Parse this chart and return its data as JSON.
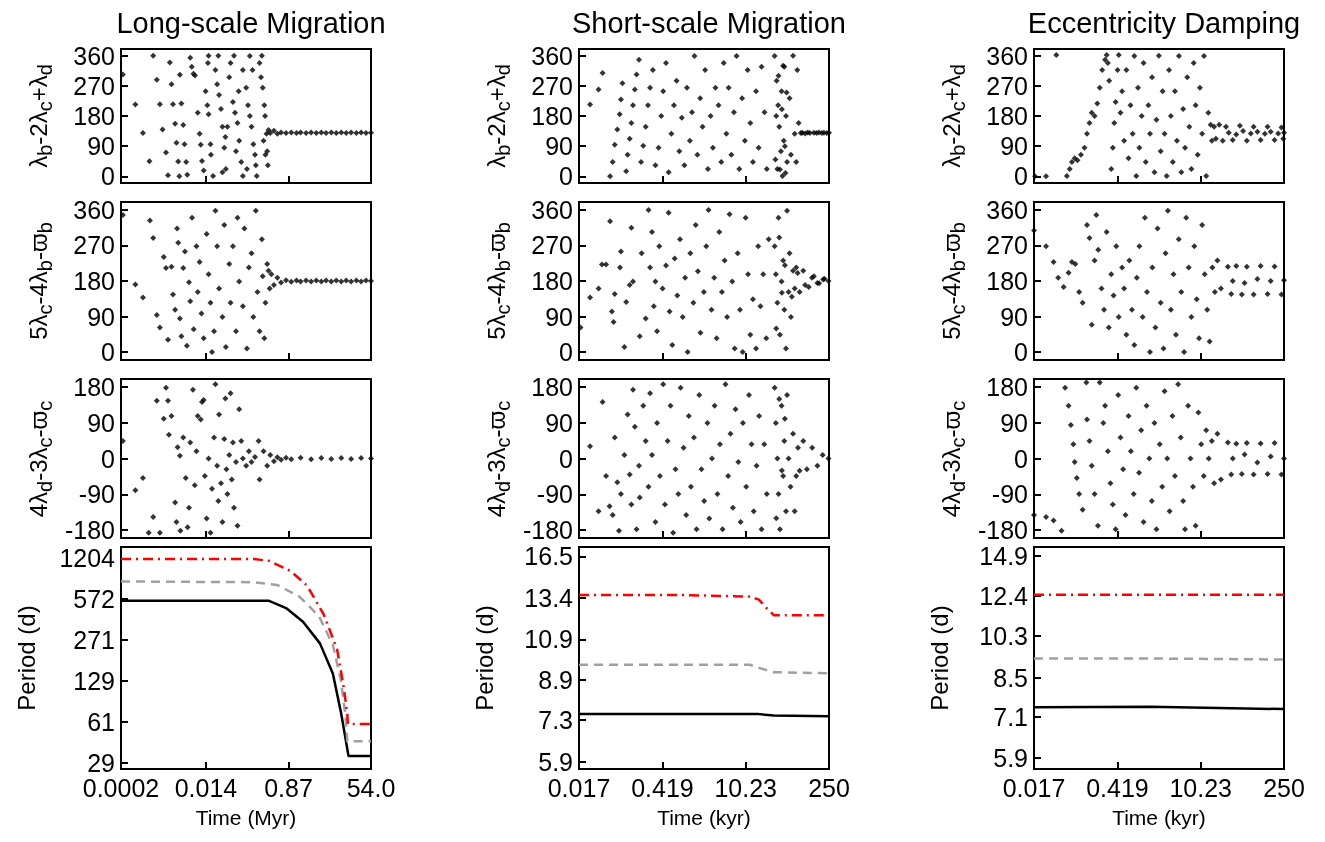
{
  "chart_data": [
    {
      "type": "scatter",
      "title": "Long-scale Migration",
      "ylabel": "λ$_{b}$-2λ$_{c}$+λ$_{d}$",
      "log": "x",
      "marker": "diamond",
      "tick_labels": "y",
      "xlim": [
        0.0002,
        54
      ],
      "xticks": [
        0.0002,
        0.014,
        0.87,
        54
      ],
      "ylim": [
        -20,
        380
      ],
      "yticks": [
        0,
        90,
        180,
        270,
        360
      ],
      "series": [
        {
          "color": "#000000",
          "x": [
            0.00022,
            0.00041,
            0.0006,
            0.00083,
            0.001,
            0.0012,
            0.0014,
            0.0016,
            0.0019,
            0.0021,
            0.0023,
            0.0025,
            0.0027,
            0.003,
            0.0032,
            0.0035,
            0.0037,
            0.0038,
            0.0041,
            0.0045,
            0.0048,
            0.0052,
            0.0055,
            0.0064,
            0.0069,
            0.0075,
            0.0081,
            0.0093,
            0.0102,
            0.0108,
            0.0115,
            0.0125,
            0.0138,
            0.015,
            0.016,
            0.0176,
            0.018,
            0.02,
            0.016,
            0.0155,
            0.0225,
            0.0245,
            0.027,
            0.0298,
            0.032,
            0.035,
            0.038,
            0.026,
            0.032,
            0.041,
            0.037,
            0.045,
            0.048,
            0.054,
            0.06,
            0.068,
            0.074,
            0.082,
            0.089,
            0.057,
            0.072,
            0.089,
            0.063,
            0.105,
            0.115,
            0.126,
            0.137,
            0.15,
            0.163,
            0.17,
            0.126,
            0.144,
            0.109,
            0.178,
            0.205,
            0.22,
            0.24,
            0.26,
            0.27,
            0.29,
            0.3,
            0.31,
            0.23,
            0.25,
            0.275,
            0.32,
            0.35,
            0.42,
            0.5,
            0.6,
            0.77,
            1,
            1.3,
            1.6,
            2.1,
            2.7,
            3.5,
            4.5,
            5.7,
            7.4,
            9.5,
            12.2,
            15.6,
            20,
            26,
            33,
            42,
            54
          ],
          "values": [
            304,
            214,
            129,
            45,
            360,
            288,
            215,
            140,
            71,
            3,
            340,
            275,
            215,
            157,
            100,
            44,
            0,
            303,
            217,
            153,
            96,
            43,
            5,
            354,
            327,
            306,
            301,
            190,
            127,
            94,
            46,
            17,
            254,
            212,
            185,
            96,
            64,
            1,
            360,
            338,
            317,
            275,
            243,
            201,
            148,
            85,
            22,
            360,
            12,
            148,
            117,
            296,
            338,
            222,
            190,
            159,
            106,
            43,
            1,
            360,
            254,
            317,
            75,
            264,
            212,
            180,
            148,
            96,
            64,
            33,
            359,
            317,
            22,
            1,
            338,
            296,
            264,
            212,
            180,
            127,
            75,
            33,
            360,
            106,
            64,
            138,
            129,
            136,
            127,
            131,
            129,
            131,
            129,
            131,
            129,
            131,
            129,
            131,
            129,
            131,
            129,
            131,
            129,
            131,
            129,
            131,
            129,
            130
          ]
        }
      ]
    },
    {
      "type": "scatter",
      "title": "Short-scale Migration",
      "ylabel": "λ$_{b}$-2λ$_{c}$+λ$_{d}$",
      "log": "x",
      "marker": "diamond",
      "tick_labels": "y",
      "xlim": [
        0.017,
        250
      ],
      "xticks": [
        0.017,
        0.419,
        10.23,
        250
      ],
      "ylim": [
        -20,
        380
      ],
      "yticks": [
        0,
        90,
        180,
        270,
        360
      ],
      "series": [
        {
          "color": "#000000",
          "x": [
            0.026,
            0.036,
            0.042,
            0.056,
            0.062,
            0.067,
            0.074,
            0.081,
            0.085,
            0.09,
            0.104,
            0.11,
            0.119,
            0.127,
            0.135,
            0.145,
            0.155,
            0.17,
            0.184,
            0.2,
            0.22,
            0.24,
            0.26,
            0.29,
            0.32,
            0.36,
            0.4,
            0.43,
            0.48,
            0.53,
            0.59,
            0.65,
            0.72,
            0.8,
            0.88,
            0.97,
            1.07,
            1.2,
            1.3,
            1.43,
            1.6,
            1.78,
            1.95,
            2.15,
            2.4,
            2.65,
            2.9,
            3.2,
            3.6,
            4,
            4.4,
            4.85,
            5.3,
            5.9,
            6.5,
            7.2,
            8,
            8.9,
            9.9,
            11,
            12.2,
            13.5,
            15.2,
            16.8,
            18.8,
            21,
            23,
            31,
            33.5,
            35.5,
            37,
            39.5,
            42,
            45,
            48,
            50,
            34.5,
            40.5,
            44,
            32,
            33,
            36,
            38,
            41,
            43,
            46,
            49,
            47,
            55,
            58,
            63,
            67,
            71,
            74,
            78,
            85,
            90,
            100,
            110,
            120,
            140,
            155,
            170,
            190,
            206,
            230,
            250
          ],
          "values": [
            214,
            259,
            308,
            0,
            43,
            94,
            140,
            185,
            229,
            278,
            15,
            64,
            112,
            159,
            212,
            259,
            304,
            348,
            43,
            91,
            148,
            212,
            264,
            317,
            33,
            85,
            180,
            254,
            338,
            12,
            127,
            212,
            285,
            75,
            175,
            33,
            264,
            106,
            191,
            359,
            64,
            233,
            148,
            317,
            22,
            180,
            85,
            264,
            212,
            43,
            338,
            127,
            264,
            64,
            191,
            359,
            22,
            233,
            106,
            317,
            159,
            43,
            254,
            85,
            327,
            191,
            22,
            359,
            285,
            212,
            148,
            75,
            1,
            327,
            180,
            43,
            22,
            254,
            106,
            50,
            180,
            300,
            20,
            200,
            330,
            90,
            250,
            10,
            233,
            64,
            360,
            127,
            43,
            317,
            159,
            129,
            130,
            128,
            131,
            129,
            130,
            129,
            131,
            129,
            130,
            129,
            130
          ]
        }
      ]
    },
    {
      "type": "scatter",
      "title": "Eccentricity Damping",
      "ylabel": "λ$_{b}$-2λ$_{c}$+λ$_{d}$",
      "log": "x",
      "marker": "diamond",
      "tick_labels": "y",
      "xlim": [
        0.017,
        250
      ],
      "xticks": [
        0.017,
        0.419,
        10.23,
        250
      ],
      "ylim": [
        -20,
        380
      ],
      "yticks": [
        0,
        90,
        180,
        270,
        360
      ],
      "series": [
        {
          "color": "#000000",
          "x": [
            0.0177,
            0.027,
            0.04,
            0.06,
            0.067,
            0.073,
            0.081,
            0.09,
            0.103,
            0.118,
            0.13,
            0.143,
            0.156,
            0.174,
            0.193,
            0.212,
            0.233,
            0.26,
            0.276,
            0.29,
            0.305,
            0.33,
            0.35,
            0.37,
            0.39,
            0.42,
            0.44,
            0.47,
            0.5,
            0.54,
            0.59,
            0.64,
            0.69,
            0.75,
            0.8,
            0.86,
            0.92,
            0.97,
            1.06,
            1.14,
            1.24,
            1.37,
            1.46,
            1.58,
            1.73,
            1.87,
            2.05,
            2.2,
            2.37,
            2.55,
            2.77,
            3.03,
            3.25,
            3.5,
            3.8,
            4.1,
            4.43,
            4.85,
            5.2,
            5.6,
            6.1,
            6.6,
            7.15,
            7.8,
            8.4,
            9.1,
            9.9,
            10.8,
            11.6,
            12.6,
            13.7,
            15,
            15.7,
            17.1,
            18.3,
            20.8,
            23.8,
            27,
            35,
            46,
            60,
            78,
            102,
            133,
            174,
            227,
            243,
            30,
            40,
            52,
            70,
            90,
            120,
            150,
            200,
            250
          ],
          "values": [
            0,
            0,
            362,
            1,
            22,
            43,
            54,
            48,
            64,
            85,
            127,
            159,
            190,
            180,
            217,
            264,
            317,
            348,
            362,
            338,
            285,
            22,
            85,
            159,
            222,
            317,
            362,
            190,
            254,
            106,
            317,
            54,
            212,
            127,
            359,
            1,
            264,
            85,
            180,
            338,
            43,
            212,
            127,
            296,
            12,
            169,
            360,
            75,
            254,
            127,
            1,
            317,
            180,
            43,
            254,
            106,
            359,
            12,
            201,
            85,
            296,
            148,
            22,
            338,
            212,
            64,
            264,
            127,
            359,
            1,
            190,
            154,
            106,
            148,
            112,
            154,
            106,
            148,
            108,
            151,
            106,
            148,
            108,
            148,
            108,
            146,
            112,
            130,
            125,
            135,
            128,
            133,
            127,
            133,
            128,
            130
          ]
        }
      ]
    },
    {
      "type": "scatter",
      "ylabel": "5λ$_{c}$-4λ$_{b}$-ϖ$_{b}$",
      "log": "x",
      "marker": "diamond",
      "tick_labels": "y",
      "xlim": [
        0.0002,
        54
      ],
      "xticks": [
        0.0002,
        0.014,
        0.87,
        54
      ],
      "ylim": [
        -20,
        380
      ],
      "yticks": [
        0,
        90,
        180,
        270,
        360
      ],
      "series": [
        {
          "color": "#000000",
          "x": [
            0.00022,
            0.00041,
            0.0006,
            0.00085,
            0.001,
            0.0012,
            0.0014,
            0.0017,
            0.0019,
            0.0021,
            0.0025,
            0.0027,
            0.003,
            0.0033,
            0.0035,
            0.0038,
            0.0041,
            0.0045,
            0.0049,
            0.0054,
            0.006,
            0.0064,
            0.007,
            0.0076,
            0.0087,
            0.0093,
            0.0102,
            0.0112,
            0.0125,
            0.0145,
            0.016,
            0.0176,
            0.019,
            0.021,
            0.0225,
            0.0245,
            0.027,
            0.032,
            0.035,
            0.038,
            0.045,
            0.048,
            0.054,
            0.063,
            0.068,
            0.074,
            0.089,
            0.096,
            0.109,
            0.12,
            0.137,
            0.15,
            0.17,
            0.185,
            0.205,
            0.23,
            0.24,
            0.26,
            0.275,
            0.3,
            0.32,
            0.34,
            0.37,
            0.42,
            0.5,
            0.6,
            0.77,
            1,
            1.3,
            1.6,
            2.1,
            2.7,
            3.5,
            4.5,
            5.7,
            7.4,
            9.5,
            12.2,
            15.6,
            20,
            26,
            33,
            42,
            54
          ],
          "values": [
            347,
            171,
            138,
            333,
            289,
            94,
            62,
            241,
            213,
            31,
            216,
            146,
            107,
            313,
            277,
            85,
            40,
            213,
            255,
            16,
            177,
            129,
            340,
            58,
            268,
            152,
            228,
            98,
            35,
            299,
            197,
            125,
            0,
            53,
            358,
            268,
            161,
            89,
            322,
            13,
            223,
            125,
            268,
            53,
            340,
            179,
            116,
            313,
            9,
            214,
            250,
            89,
            358,
            152,
            53,
            286,
            192,
            35,
            125,
            223,
            206,
            161,
            197,
            170,
            188,
            176,
            182,
            178,
            181,
            179,
            181,
            179,
            181,
            179,
            181,
            179,
            181,
            179,
            181,
            179,
            181,
            179,
            181,
            180
          ]
        }
      ]
    },
    {
      "type": "scatter",
      "ylabel": "5λ$_{c}$-4λ$_{b}$-ϖ$_{b}$",
      "log": "x",
      "marker": "diamond",
      "tick_labels": "y",
      "xlim": [
        0.017,
        250
      ],
      "xticks": [
        0.017,
        0.419,
        10.23,
        250
      ],
      "ylim": [
        -20,
        380
      ],
      "yticks": [
        0,
        90,
        180,
        270,
        360
      ],
      "series": [
        {
          "color": "#000000",
          "x": [
            0.018,
            0.026,
            0.036,
            0.041,
            0.048,
            0.056,
            0.06,
            0.064,
            0.067,
            0.082,
            0.085,
            0.097,
            0.104,
            0.119,
            0.127,
            0.135,
            0.175,
            0.188,
            0.22,
            0.245,
            0.26,
            0.28,
            0.3,
            0.32,
            0.34,
            0.37,
            0.42,
            0.48,
            0.53,
            0.55,
            0.61,
            0.67,
            0.74,
            0.82,
            0.91,
            1,
            1.1,
            1.22,
            1.37,
            1.5,
            1.63,
            1.8,
            2.05,
            2.25,
            2.45,
            2.75,
            3.05,
            3.35,
            3.7,
            4.1,
            4.55,
            5,
            5.5,
            6.1,
            6.7,
            7.5,
            8.2,
            9.1,
            10.2,
            11.2,
            12.2,
            13.5,
            15.2,
            16.5,
            18,
            20,
            22.5,
            24.7,
            31,
            32.5,
            34.5,
            36,
            38,
            40.5,
            43,
            45,
            48,
            50,
            53,
            33,
            37,
            41,
            46,
            55,
            58,
            60,
            63,
            67,
            71,
            75,
            81,
            93,
            100,
            115,
            130,
            140,
            160,
            171,
            200,
            210,
            245
          ],
          "values": [
            62,
            138,
            161,
            222,
            222,
            331,
            103,
            76,
            147,
            214,
            255,
            13,
            127,
            170,
            315,
            179,
            40,
            250,
            85,
            360,
            214,
            304,
            116,
            179,
            53,
            268,
            161,
            219,
            353,
            103,
            18,
            237,
            143,
            286,
            89,
            188,
            0,
            250,
            125,
            322,
            205,
            49,
            152,
            268,
            360,
            107,
            188,
            35,
            304,
            152,
            232,
            89,
            349,
            179,
            9,
            250,
            107,
            0,
            340,
            197,
            44,
            134,
            9,
            268,
            116,
            197,
            35,
            286,
            268,
            197,
            125,
            340,
            44,
            179,
            232,
            107,
            9,
            358,
            152,
            60,
            290,
            150,
            220,
            250,
            89,
            140,
            206,
            161,
            214,
            200,
            152,
            206,
            170,
            165,
            188,
            192,
            175,
            174,
            184,
            186,
            180
          ]
        }
      ]
    },
    {
      "type": "scatter",
      "ylabel": "5λ$_{c}$-4λ$_{b}$-ϖ$_{b}$",
      "log": "x",
      "marker": "diamond",
      "tick_labels": "y",
      "xlim": [
        0.017,
        250
      ],
      "xticks": [
        0.017,
        0.419,
        10.23,
        250
      ],
      "ylim": [
        -20,
        380
      ],
      "yticks": [
        0,
        90,
        180,
        270,
        360
      ],
      "series": [
        {
          "color": "#000000",
          "x": [
            0.017,
            0.027,
            0.036,
            0.043,
            0.053,
            0.064,
            0.073,
            0.083,
            0.096,
            0.11,
            0.13,
            0.143,
            0.156,
            0.174,
            0.186,
            0.2,
            0.227,
            0.25,
            0.276,
            0.3,
            0.33,
            0.36,
            0.4,
            0.44,
            0.5,
            0.54,
            0.59,
            0.66,
            0.73,
            0.8,
            0.88,
            0.97,
            1.1,
            1.2,
            1.3,
            1.46,
            1.6,
            1.8,
            1.95,
            2.2,
            2.45,
            2.65,
            2.9,
            3.25,
            3.6,
            3.95,
            4.4,
            4.85,
            5.4,
            5.85,
            6.45,
            7.15,
            8,
            8.75,
            9.6,
            10.8,
            11.9,
            13.1,
            14.4,
            16,
            17.6,
            19.4,
            22.2,
            29,
            33,
            40,
            49.5,
            60,
            78,
            102,
            133,
            174,
            227,
            35,
            55,
            90,
            150,
            250
          ],
          "values": [
            308,
            268,
            228,
            188,
            165,
            201,
            228,
            223,
            152,
            125,
            322,
            289,
            69,
            232,
            347,
            259,
            161,
            107,
            304,
            62,
            197,
            143,
            268,
            89,
            214,
            161,
            44,
            232,
            107,
            18,
            188,
            268,
            89,
            340,
            152,
            0,
            214,
            62,
            313,
            125,
            9,
            250,
            358,
            107,
            197,
            44,
            286,
            152,
            0,
            340,
            214,
            89,
            268,
            134,
            35,
            322,
            197,
            107,
            27,
            214,
            152,
            232,
            161,
            216,
            147,
            218,
            146,
            216,
            146,
            218,
            147,
            217,
            146,
            180,
            175,
            185,
            180,
            182
          ]
        }
      ]
    },
    {
      "type": "scatter",
      "ylabel": "4λ$_{d}$-3λ$_{c}$-ϖ$_{c}$",
      "log": "x",
      "marker": "diamond",
      "tick_labels": "y",
      "xlim": [
        0.0002,
        54
      ],
      "xticks": [
        0.0002,
        0.014,
        0.87,
        54
      ],
      "ylim": [
        -200,
        200
      ],
      "yticks": [
        -180,
        -90,
        0,
        90,
        180
      ],
      "series": [
        {
          "color": "#000000",
          "x": [
            0.00022,
            0.00041,
            0.0006,
            0.0008,
            0.001,
            0.0012,
            0.0014,
            0.0017,
            0.0019,
            0.0021,
            0.0022,
            0.0025,
            0.003,
            0.0032,
            0.0034,
            0.0038,
            0.0039,
            0.0045,
            0.0051,
            0.0056,
            0.006,
            0.0064,
            0.0073,
            0.008,
            0.0087,
            0.0093,
            0.0108,
            0.0115,
            0.0125,
            0.0133,
            0.0145,
            0.016,
            0.0176,
            0.019,
            0.021,
            0.0225,
            0.0245,
            0.026,
            0.027,
            0.0298,
            0.032,
            0.035,
            0.037,
            0.039,
            0.041,
            0.045,
            0.048,
            0.051,
            0.054,
            0.057,
            0.063,
            0.068,
            0.074,
            0.082,
            0.089,
            0.105,
            0.12,
            0.137,
            0.163,
            0.195,
            0.205,
            0.25,
            0.3,
            0.35,
            0.42,
            0.5,
            0.6,
            0.77,
            1,
            1.6,
            2.7,
            4.5,
            7.4,
            12.2,
            20,
            33,
            54
          ],
          "values": [
            44,
            -80,
            -49,
            -187,
            -147,
            145,
            -187,
            100,
            178,
            145,
            60,
            107,
            -111,
            -160,
            28,
            7,
            -182,
            53,
            -49,
            -173,
            -124,
            40,
            173,
            -67,
            18,
            107,
            98,
            142,
            147,
            -44,
            -151,
            0,
            -187,
            -76,
            53,
            187,
            -18,
            -107,
            111,
            -62,
            -160,
            49,
            151,
            -27,
            -89,
            9,
            164,
            -53,
            40,
            -124,
            -9,
            -169,
            124,
            44,
            0,
            -18,
            18,
            -9,
            4,
            44,
            -53,
            18,
            -18,
            9,
            -7,
            3,
            -3,
            2,
            -2,
            2,
            -2,
            1,
            -1,
            1,
            -1,
            1,
            0
          ]
        }
      ]
    },
    {
      "type": "scatter",
      "ylabel": "4λ$_{d}$-3λ$_{c}$-ϖ$_{c}$",
      "log": "x",
      "marker": "diamond",
      "tick_labels": "y",
      "xlim": [
        0.017,
        250
      ],
      "xticks": [
        0.017,
        0.419,
        10.23,
        250
      ],
      "ylim": [
        -200,
        200
      ],
      "yticks": [
        -180,
        -90,
        0,
        90,
        180
      ],
      "series": [
        {
          "color": "#000000",
          "x": [
            0.026,
            0.036,
            0.042,
            0.048,
            0.055,
            0.062,
            0.067,
            0.074,
            0.079,
            0.085,
            0.097,
            0.11,
            0.119,
            0.127,
            0.135,
            0.145,
            0.155,
            0.17,
            0.175,
            0.2,
            0.22,
            0.245,
            0.26,
            0.28,
            0.32,
            0.34,
            0.38,
            0.43,
            0.46,
            0.51,
            0.57,
            0.63,
            0.69,
            0.77,
            0.84,
            0.94,
            1.04,
            1.15,
            1.25,
            1.4,
            1.55,
            1.72,
            1.87,
            2.07,
            2.35,
            2.53,
            2.8,
            3.1,
            3.45,
            3.8,
            4.2,
            4.7,
            5.2,
            5.7,
            6.25,
            6.9,
            7.7,
            8.4,
            9.2,
            10.4,
            11.6,
            12.8,
            13.9,
            15.5,
            17.1,
            18.8,
            20.8,
            23,
            31,
            32.5,
            34.5,
            36,
            38,
            40.5,
            43,
            45,
            48,
            50,
            53,
            33,
            37,
            41,
            46,
            57,
            63,
            67,
            71,
            76,
            81,
            93,
            107,
            131,
            160,
            196,
            245
          ],
          "values": [
            31,
            -133,
            142,
            -44,
            -120,
            -142,
            53,
            -60,
            -182,
            -89,
            9,
            111,
            -40,
            -116,
            173,
            80,
            -178,
            -18,
            -98,
            133,
            44,
            -71,
            164,
            9,
            -160,
            89,
            -44,
            187,
            -116,
            44,
            133,
            -187,
            -27,
            -89,
            178,
            27,
            -142,
            107,
            -71,
            53,
            -178,
            160,
            -27,
            -107,
            89,
            -151,
            0,
            133,
            -89,
            36,
            -178,
            187,
            -44,
            62,
            -124,
            124,
            -9,
            -160,
            89,
            -71,
            160,
            36,
            -133,
            -18,
            107,
            -178,
            36,
            -89,
            178,
            89,
            0,
            -89,
            -178,
            133,
            -44,
            44,
            -133,
            160,
            0,
            -150,
            150,
            -30,
            100,
            -71,
            62,
            -133,
            -44,
            27,
            -31,
            44,
            -27,
            27,
            -18,
            9,
            0
          ]
        }
      ]
    },
    {
      "type": "scatter",
      "ylabel": "4λ$_{d}$-3λ$_{c}$-ϖ$_{c}$",
      "log": "x",
      "marker": "diamond",
      "tick_labels": "y",
      "xlim": [
        0.017,
        250
      ],
      "xticks": [
        0.017,
        0.419,
        10.23,
        250
      ],
      "ylim": [
        -200,
        200
      ],
      "yticks": [
        -180,
        -90,
        0,
        90,
        180
      ],
      "series": [
        {
          "color": "#000000",
          "x": [
            0.017,
            0.027,
            0.036,
            0.049,
            0.056,
            0.064,
            0.07,
            0.077,
            0.081,
            0.088,
            0.096,
            0.11,
            0.127,
            0.13,
            0.143,
            0.156,
            0.174,
            0.198,
            0.212,
            0.243,
            0.26,
            0.29,
            0.32,
            0.35,
            0.39,
            0.43,
            0.47,
            0.52,
            0.57,
            0.64,
            0.7,
            0.78,
            0.86,
            0.96,
            1.04,
            1.14,
            1.28,
            1.42,
            1.57,
            1.73,
            1.87,
            2.12,
            2.33,
            2.55,
            2.83,
            3.1,
            3.45,
            3.8,
            4.3,
            4.75,
            5.2,
            5.6,
            6.3,
            6.9,
            7.6,
            8.4,
            9.35,
            10.4,
            11.5,
            12.6,
            13.9,
            15.7,
            17.1,
            19.4,
            22.2,
            29,
            33,
            40,
            49.5,
            60,
            78,
            102,
            133,
            174,
            227,
            35,
            55,
            90,
            150,
            250
          ],
          "values": [
            -142,
            -147,
            -156,
            -182,
            178,
            133,
            84,
            36,
            -9,
            -49,
            -89,
            -129,
            191,
            98,
            44,
            -18,
            -89,
            -169,
            191,
            89,
            133,
            18,
            -62,
            -116,
            -178,
            160,
            53,
            -27,
            -142,
            107,
            18,
            -89,
            178,
            -36,
            71,
            -160,
            133,
            0,
            -107,
            89,
            -178,
            36,
            -71,
            169,
            0,
            -133,
            107,
            -44,
            187,
            53,
            -107,
            -178,
            133,
            0,
            -71,
            -169,
            116,
            36,
            -44,
            71,
            0,
            44,
            -62,
            62,
            -53,
            40,
            -40,
            37,
            -39,
            39,
            -40,
            38,
            -39,
            39,
            -40,
            0,
            10,
            -10,
            5,
            0
          ]
        }
      ]
    },
    {
      "type": "line",
      "xlabel": "Time (Myr)",
      "ylabel": "Period (d)",
      "log": "xy",
      "xlim": [
        0.0002,
        54
      ],
      "xticks": [
        0.0002,
        0.014,
        0.87,
        {
          "value": 54,
          "label": "54.0"
        }
      ],
      "ylim": [
        26,
        1480
      ],
      "yticks": [
        29,
        61,
        129,
        271,
        572,
        1204
      ],
      "series": [
        {
          "color": "#000000",
          "line_style": "solid",
          "x": [
            0.0002,
            0.33,
            0.77,
            1.8,
            4.2,
            8,
            12,
            15,
            17.5,
            54
          ],
          "values": [
            555,
            555,
            487,
            380,
            256,
            148,
            73,
            46,
            33,
            33
          ]
        },
        {
          "color": "#a0a0a0",
          "line_style": "dashed",
          "x": [
            0.0002,
            0.15,
            0.5,
            1.5,
            4,
            8,
            12,
            15,
            16.5,
            54
          ],
          "values": [
            790,
            780,
            740,
            600,
            420,
            250,
            130,
            70,
            43,
            43
          ]
        },
        {
          "color": "#ff0000",
          "line_style": "dashdot",
          "x": [
            0.0002,
            0.15,
            0.33,
            0.95,
            2.2,
            5.1,
            9.9,
            13.5,
            16.5,
            17,
            54
          ],
          "values": [
            1190,
            1190,
            1150,
            960,
            735,
            432,
            230,
            121,
            71,
            59,
            59
          ]
        }
      ]
    },
    {
      "type": "line",
      "xlabel": "Time (kyr)",
      "ylabel": "Period (d)",
      "log": "xy",
      "xlim": [
        0.017,
        250
      ],
      "xticks": [
        0.017,
        0.419,
        10.23,
        250
      ],
      "ylim": [
        5.7,
        17.3
      ],
      "yticks": [
        5.9,
        7.3,
        8.9,
        10.9,
        13.4,
        16.5
      ],
      "series": [
        {
          "color": "#000000",
          "line_style": "solid",
          "x": [
            0.017,
            17,
            30,
            250
          ],
          "values": [
            7.5,
            7.5,
            7.45,
            7.42
          ]
        },
        {
          "color": "#a0a0a0",
          "line_style": "dashed",
          "x": [
            0.017,
            12,
            17,
            30,
            250
          ],
          "values": [
            9.6,
            9.6,
            9.45,
            9.25,
            9.2
          ]
        },
        {
          "color": "#ff0000",
          "line_style": "dashdot",
          "x": [
            0.017,
            1,
            11.6,
            17,
            22,
            30,
            250
          ],
          "values": [
            13.6,
            13.6,
            13.5,
            13.3,
            12.8,
            12.3,
            12.3
          ]
        }
      ]
    },
    {
      "type": "line",
      "xlabel": "Time (kyr)",
      "ylabel": "Period (d)",
      "log": "xy",
      "xlim": [
        0.017,
        250
      ],
      "xticks": [
        0.017,
        0.419,
        10.23,
        250
      ],
      "ylim": [
        5.6,
        15.5
      ],
      "yticks": [
        5.9,
        7.1,
        8.5,
        10.3,
        12.4,
        14.9
      ],
      "series": [
        {
          "color": "#000000",
          "line_style": "solid",
          "x": [
            0.017,
            1.5,
            250
          ],
          "values": [
            7.43,
            7.45,
            7.37
          ]
        },
        {
          "color": "#a0a0a0",
          "line_style": "dashed",
          "x": [
            0.017,
            1,
            250
          ],
          "values": [
            9.3,
            9.3,
            9.25
          ]
        },
        {
          "color": "#ff0000",
          "line_style": "dashdot",
          "x": [
            0.017,
            250
          ],
          "values": [
            12.45,
            12.45
          ]
        }
      ]
    }
  ]
}
